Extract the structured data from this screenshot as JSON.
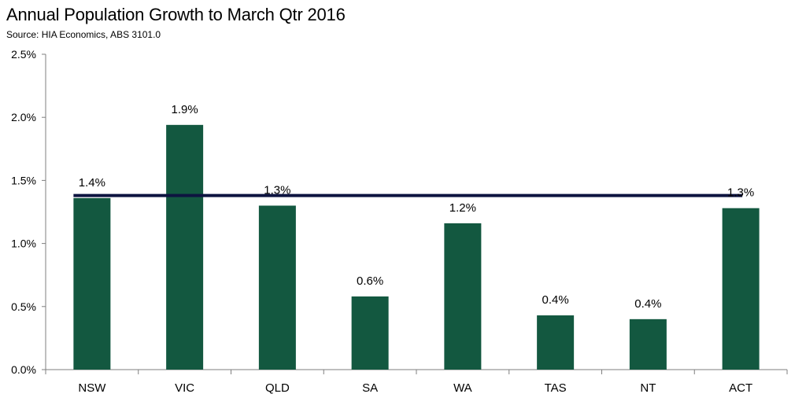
{
  "chart_data": {
    "type": "bar",
    "title": "Annual Population Growth to March Qtr 2016",
    "subtitle": "Source: HIA Economics, ABS 3101.0",
    "categories": [
      "NSW",
      "VIC",
      "QLD",
      "SA",
      "WA",
      "TAS",
      "NT",
      "ACT"
    ],
    "values": [
      1.36,
      1.94,
      1.3,
      0.58,
      1.16,
      0.43,
      0.4,
      1.28
    ],
    "data_labels": [
      "1.4%",
      "1.9%",
      "1.3%",
      "0.6%",
      "1.2%",
      "0.4%",
      "0.4%",
      "1.3%"
    ],
    "reference_line": {
      "value": 1.38
    },
    "ylim": [
      0,
      2.5
    ],
    "y_ticks": [
      0,
      0.5,
      1.0,
      1.5,
      2.0,
      2.5
    ],
    "y_tick_labels": [
      "0.0%",
      "0.5%",
      "1.0%",
      "1.5%",
      "2.0%",
      "2.5%"
    ],
    "xlabel": "",
    "ylabel": "",
    "grid": false,
    "legend": "none",
    "colors": {
      "bar": "#135840",
      "reference_line": "#0d1440",
      "axis": "#7f7f7f"
    }
  }
}
